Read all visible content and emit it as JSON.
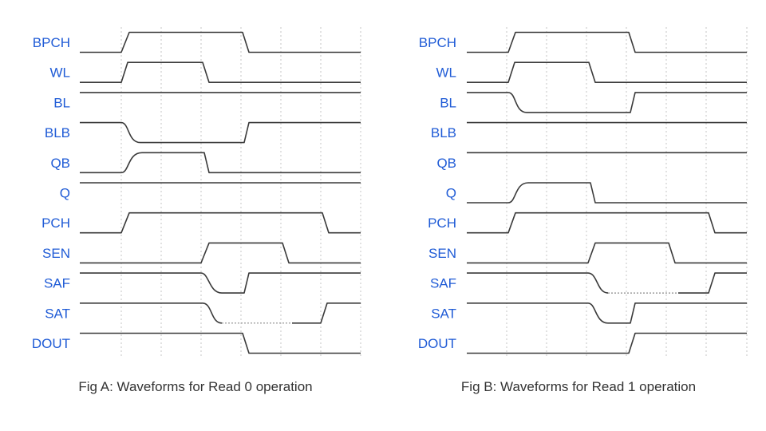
{
  "figures": [
    {
      "id": "fig-a",
      "caption": "Fig A: Waveforms for Read 0 operation",
      "signals": [
        "BPCH",
        "WL",
        "BL",
        "BLB",
        "QB",
        "Q",
        "PCH",
        "SEN",
        "SAF",
        "SAT",
        "DOUT"
      ]
    },
    {
      "id": "fig-b",
      "caption": "Fig B: Waveforms for Read 1 operation",
      "signals": [
        "BPCH",
        "WL",
        "BL",
        "BLB",
        "QB",
        "Q",
        "PCH",
        "SEN",
        "SAF",
        "SAT",
        "DOUT"
      ]
    }
  ]
}
